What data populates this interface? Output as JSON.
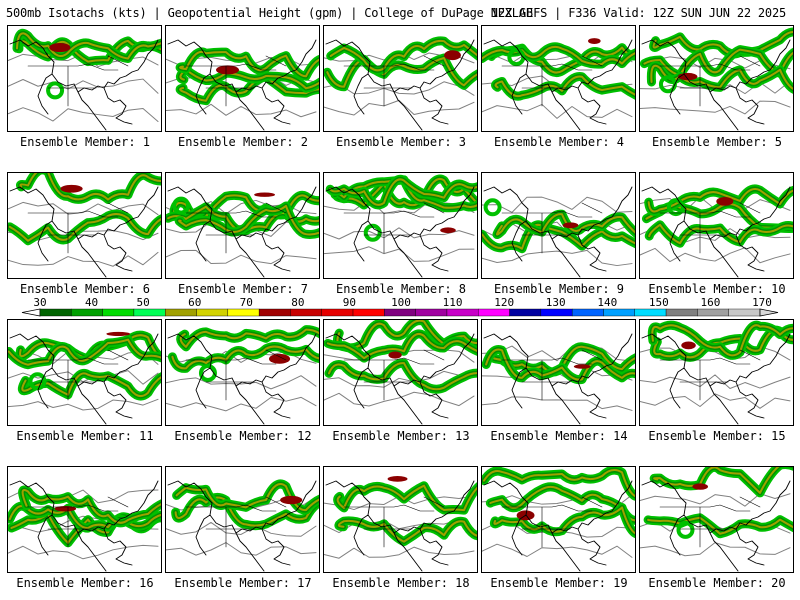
{
  "header": {
    "left": "500mb Isotachs (kts) | Geopotential Height (gpm) | College of DuPage NEXLAB",
    "right": "12Z GEFS | F336 Valid: 12Z SUN JUN 22 2025"
  },
  "member_prefix": "Ensemble Member:",
  "members": [
    {
      "label": "Ensemble Member: 1"
    },
    {
      "label": "Ensemble Member: 2"
    },
    {
      "label": "Ensemble Member: 3"
    },
    {
      "label": "Ensemble Member: 4"
    },
    {
      "label": "Ensemble Member: 5"
    },
    {
      "label": "Ensemble Member: 6"
    },
    {
      "label": "Ensemble Member: 7"
    },
    {
      "label": "Ensemble Member: 8"
    },
    {
      "label": "Ensemble Member: 9"
    },
    {
      "label": "Ensemble Member: 10"
    },
    {
      "label": "Ensemble Member: 11"
    },
    {
      "label": "Ensemble Member: 12"
    },
    {
      "label": "Ensemble Member: 13"
    },
    {
      "label": "Ensemble Member: 14"
    },
    {
      "label": "Ensemble Member: 15"
    },
    {
      "label": "Ensemble Member: 16"
    },
    {
      "label": "Ensemble Member: 17"
    },
    {
      "label": "Ensemble Member: 18"
    },
    {
      "label": "Ensemble Member: 19"
    },
    {
      "label": "Ensemble Member: 20"
    }
  ],
  "colorbar": {
    "labels": [
      "30",
      "40",
      "50",
      "60",
      "70",
      "80",
      "90",
      "100",
      "110",
      "120",
      "130",
      "140",
      "150",
      "160",
      "170"
    ],
    "colors": [
      "#006400",
      "#00a000",
      "#00dc00",
      "#00ff55",
      "#a0a000",
      "#d2d200",
      "#ffff00",
      "#a00000",
      "#c80000",
      "#e60000",
      "#ff0000",
      "#800080",
      "#a000a0",
      "#c800c8",
      "#ff00ff",
      "#0000a0",
      "#0000ff",
      "#0064ff",
      "#00a0ff",
      "#00dcff",
      "#808080",
      "#a0a0a0",
      "#c8c8c8"
    ]
  },
  "map_colors": {
    "jet_low": "#00c000",
    "jet_mid": "#a0a000",
    "jet_high": "#8b0000",
    "height_contour": "#808080",
    "coast": "#000000"
  }
}
